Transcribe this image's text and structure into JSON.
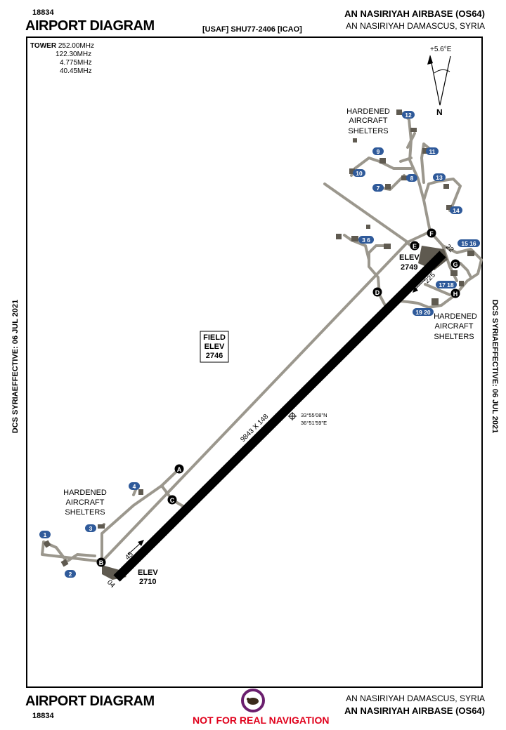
{
  "header": {
    "id_top": "18834",
    "title_top": "AIRPORT DIAGRAM",
    "center_code": "[USAF] SHU77-2406 [ICAO]",
    "airport_name_top": "AN NASIRIYAH AIRBASE (OS64)",
    "location_top": "AN NASIRIYAH DAMASCUS, SYRIA"
  },
  "footer": {
    "title_bottom": "AIRPORT DIAGRAM",
    "id_bottom": "18834",
    "location_bottom": "AN NASIRIYAH DAMASCUS, SYRIA",
    "airport_name_bottom": "AN NASIRIYAH AIRBASE (OS64)",
    "warning": "NOT FOR REAL NAVIGATION"
  },
  "side_text": {
    "left": "DCS SYRIAEFFECTIVE: 06 JUL 2021",
    "right": "DCS SYRIAEFFECTIVE: 06 JUL 2021"
  },
  "frequencies": {
    "label": "TOWER",
    "values": [
      "252.00MHz",
      "122.30MHz",
      "4.775MHz",
      "40.45MHz"
    ]
  },
  "compass": {
    "variation": "+5.6°E",
    "north": "N"
  },
  "field_elev": {
    "line1": "FIELD",
    "line2": "ELEV",
    "value": "2746"
  },
  "runway": {
    "dimensions": "9843 X 148",
    "end_sw": "04",
    "end_ne": "22",
    "heading_sw": "45",
    "heading_ne": "225",
    "elev_sw_label": "ELEV",
    "elev_sw_value": "2710",
    "elev_ne_label": "ELEV",
    "elev_ne_value": "2749"
  },
  "coords": {
    "lat": "33°55'08\"N",
    "lon": "36°51'59\"E"
  },
  "shelter_labels": {
    "top": [
      "HARDENED",
      "AIRCRAFT",
      "SHELTERS"
    ],
    "right": [
      "HARDENED",
      "AIRCRAFT",
      "SHELTERS"
    ],
    "left": [
      "HARDENED",
      "AIRCRAFT",
      "SHELTERS"
    ]
  },
  "taxiways": [
    "A",
    "B",
    "C",
    "D",
    "E",
    "F",
    "G",
    "H"
  ],
  "shelters": {
    "s1": "1",
    "s2": "2",
    "s3": "3",
    "s4": "4",
    "s36": "3 6",
    "s7": "7",
    "s8": "8",
    "s9": "9",
    "s10": "10",
    "s11": "11",
    "s12": "12",
    "s13": "13",
    "s14": "14",
    "s1516": "15 16",
    "s1718": "17 18",
    "s1920": "19 20"
  },
  "colors": {
    "taxiway": "#9b978d",
    "shelter": "#5f5a50",
    "runway": "#000000",
    "badge": "#2f5a9a",
    "warning": "#e0001b",
    "logo_ring": "#6b1f6e"
  }
}
